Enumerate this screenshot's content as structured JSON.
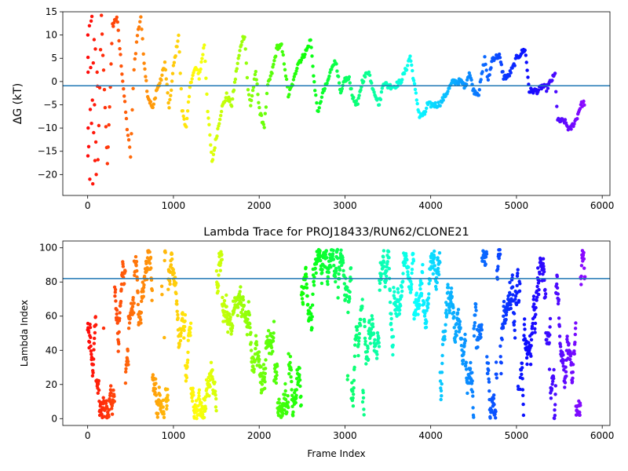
{
  "chart_data": [
    {
      "type": "scatter",
      "title": "",
      "xlabel": "",
      "ylabel": "ΔG (kT)",
      "xlim": [
        -290,
        6090
      ],
      "ylim": [
        -24.5,
        15
      ],
      "xticks": [
        0,
        1000,
        2000,
        3000,
        4000,
        5000,
        6000
      ],
      "yticks": [
        -20,
        -15,
        -10,
        -5,
        0,
        5,
        10,
        15
      ],
      "grid": false,
      "hline": {
        "y": -0.9,
        "color": "#1f77b4"
      },
      "color_by": "frame index, rainbow colormap reversed (red at start, violet at end)",
      "marker_size": 3,
      "trace_knots": [
        [
          120,
          -17
        ],
        [
          160,
          14
        ],
        [
          230,
          -18
        ],
        [
          290,
          12
        ],
        [
          340,
          14
        ],
        [
          400,
          2
        ],
        [
          460,
          -10
        ],
        [
          500,
          -16
        ],
        [
          540,
          3
        ],
        [
          580,
          10
        ],
        [
          620,
          14
        ],
        [
          650,
          6
        ],
        [
          700,
          -3
        ],
        [
          760,
          -6
        ],
        [
          800,
          -2
        ],
        [
          850,
          0
        ],
        [
          900,
          4
        ],
        [
          950,
          -6
        ],
        [
          1000,
          3
        ],
        [
          1060,
          10
        ],
        [
          1100,
          -6
        ],
        [
          1150,
          -10
        ],
        [
          1200,
          0
        ],
        [
          1260,
          3
        ],
        [
          1300,
          1
        ],
        [
          1360,
          8
        ],
        [
          1400,
          -6
        ],
        [
          1450,
          -17.5
        ],
        [
          1500,
          -12
        ],
        [
          1560,
          -6
        ],
        [
          1620,
          -3
        ],
        [
          1680,
          -5
        ],
        [
          1740,
          3
        ],
        [
          1800,
          9
        ],
        [
          1830,
          10
        ],
        [
          1870,
          -2
        ],
        [
          1900,
          -5
        ],
        [
          1960,
          2
        ],
        [
          2010,
          -7
        ],
        [
          2060,
          -9.5
        ],
        [
          2100,
          -1
        ],
        [
          2150,
          2
        ],
        [
          2210,
          7.5
        ],
        [
          2260,
          7.5
        ],
        [
          2300,
          3
        ],
        [
          2340,
          -3
        ],
        [
          2400,
          0
        ],
        [
          2450,
          4
        ],
        [
          2500,
          5
        ],
        [
          2560,
          7
        ],
        [
          2600,
          9
        ],
        [
          2650,
          -2
        ],
        [
          2690,
          -7
        ],
        [
          2730,
          -3
        ],
        [
          2800,
          0
        ],
        [
          2860,
          4
        ],
        [
          2900,
          4
        ],
        [
          2950,
          -3
        ],
        [
          3000,
          0.5
        ],
        [
          3050,
          0.5
        ],
        [
          3100,
          -4
        ],
        [
          3150,
          -5
        ],
        [
          3200,
          0
        ],
        [
          3280,
          2.5
        ],
        [
          3300,
          0
        ],
        [
          3340,
          -2
        ],
        [
          3400,
          -5
        ],
        [
          3450,
          0
        ],
        [
          3500,
          -1
        ],
        [
          3580,
          -1
        ],
        [
          3650,
          0
        ],
        [
          3720,
          3
        ],
        [
          3760,
          5.5
        ],
        [
          3820,
          -2
        ],
        [
          3870,
          -7.5
        ],
        [
          3930,
          -7
        ],
        [
          3960,
          -5
        ],
        [
          4020,
          -5
        ],
        [
          4080,
          -5
        ],
        [
          4120,
          -4.5
        ],
        [
          4200,
          -2
        ],
        [
          4260,
          0
        ],
        [
          4350,
          0
        ],
        [
          4400,
          -1
        ],
        [
          4450,
          2
        ],
        [
          4500,
          -2
        ],
        [
          4560,
          -2.5
        ],
        [
          4630,
          5
        ],
        [
          4670,
          0
        ],
        [
          4720,
          5
        ],
        [
          4800,
          5.5
        ],
        [
          4850,
          1
        ],
        [
          4900,
          1
        ],
        [
          4960,
          3
        ],
        [
          5000,
          5
        ],
        [
          5100,
          7
        ],
        [
          5150,
          -2
        ],
        [
          5250,
          -2
        ],
        [
          5300,
          -1
        ],
        [
          5350,
          -1.5
        ],
        [
          5400,
          0
        ],
        [
          5450,
          1.5
        ],
        [
          5480,
          -8.5
        ],
        [
          5560,
          -8.5
        ],
        [
          5620,
          -10.5
        ],
        [
          5700,
          -8
        ],
        [
          5750,
          -5
        ],
        [
          5800,
          -4.5
        ]
      ],
      "early_scatter": [
        [
          2,
          10
        ],
        [
          4,
          5.2
        ],
        [
          5,
          2
        ],
        [
          6,
          -10
        ],
        [
          3,
          -16
        ],
        [
          50,
          14
        ],
        [
          60,
          -22
        ],
        [
          70,
          -11
        ],
        [
          80,
          -5
        ],
        [
          90,
          7
        ],
        [
          40,
          13
        ],
        [
          55,
          -4
        ],
        [
          65,
          4
        ],
        [
          75,
          9
        ],
        [
          85,
          -17
        ],
        [
          95,
          -13
        ],
        [
          100,
          -20
        ],
        [
          110,
          2
        ],
        [
          115,
          -1
        ],
        [
          30,
          -6
        ],
        [
          20,
          12
        ],
        [
          25,
          -21
        ],
        [
          45,
          -9
        ],
        [
          35,
          3
        ],
        [
          12,
          -14
        ]
      ]
    },
    {
      "type": "scatter",
      "title": "Lambda Trace for PROJ18433/RUN62/CLONE21",
      "xlabel": "Frame Index",
      "ylabel": "Lambda Index",
      "xlim": [
        -290,
        6090
      ],
      "ylim": [
        -4,
        104
      ],
      "xticks": [
        0,
        1000,
        2000,
        3000,
        4000,
        5000,
        6000
      ],
      "yticks": [
        0,
        20,
        40,
        60,
        80,
        100
      ],
      "grid": false,
      "hline": {
        "y": 82,
        "color": "#1f77b4"
      },
      "color_by": "frame index, rainbow colormap reversed (red at start, violet at end)",
      "marker_size": 3,
      "n_frames": 5800,
      "value_range": [
        0,
        99
      ]
    }
  ]
}
